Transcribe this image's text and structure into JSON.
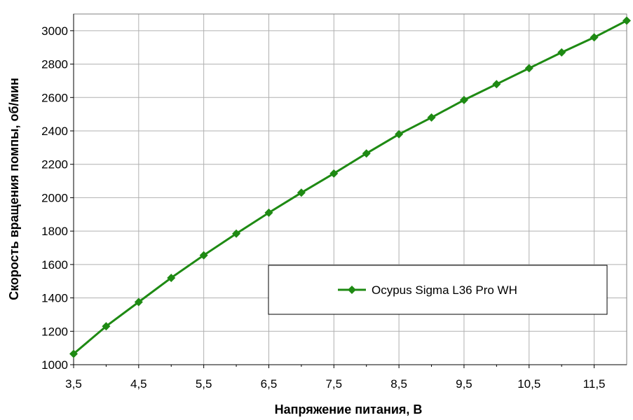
{
  "chart_data": {
    "type": "line",
    "title": "",
    "xlabel": "Напряжение питания, В",
    "ylabel": "Скорость вращения помпы, об/мин",
    "xlim": [
      3.5,
      12
    ],
    "ylim": [
      1000,
      3100
    ],
    "x_ticks": [
      "3,5",
      "4,5",
      "5,5",
      "6,5",
      "7,5",
      "8,5",
      "9,5",
      "10,5",
      "11,5"
    ],
    "x_tick_values": [
      3.5,
      4.5,
      5.5,
      6.5,
      7.5,
      8.5,
      9.5,
      10.5,
      11.5
    ],
    "y_ticks": [
      1000,
      1200,
      1400,
      1600,
      1800,
      2000,
      2200,
      2400,
      2600,
      2800,
      3000
    ],
    "grid": true,
    "legend_position": "center-right",
    "series": [
      {
        "name": "Ocypus Sigma L36 Pro WH",
        "color": "#1e8a13",
        "marker": "diamond",
        "x": [
          3.5,
          4,
          4.5,
          5,
          5.5,
          6,
          6.5,
          7,
          7.5,
          8,
          8.5,
          9,
          9.5,
          10,
          10.5,
          11,
          11.5,
          12
        ],
        "y": [
          1065,
          1230,
          1375,
          1520,
          1655,
          1785,
          1910,
          2030,
          2145,
          2265,
          2380,
          2480,
          2585,
          2680,
          2775,
          2870,
          2960,
          3060
        ]
      }
    ]
  }
}
